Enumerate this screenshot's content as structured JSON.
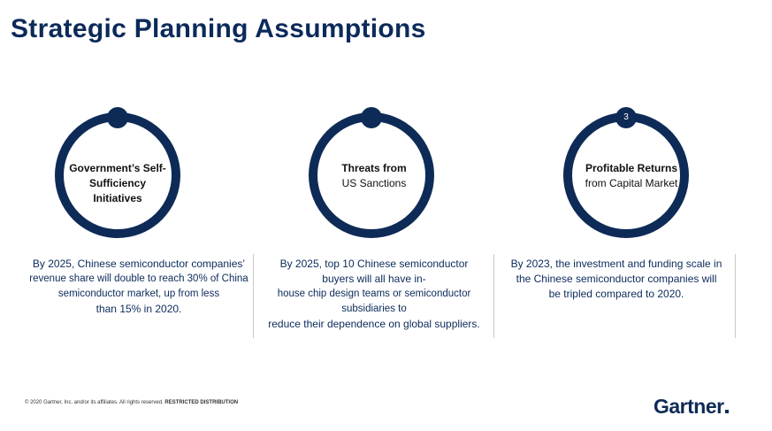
{
  "slide": {
    "title": "Strategic Planning Assumptions"
  },
  "pillars": [
    {
      "badge": "",
      "label_bold": "Government’s Self-Sufficiency Initiatives",
      "label_regular": "",
      "statement_line1": "By 2025, Chinese semiconductor companies’",
      "statement_line2": "revenue share will double to reach 30% of China semiconductor market, up from less",
      "statement_line3": "than 15% in 2020."
    },
    {
      "badge": "",
      "label_bold": "Threats from",
      "label_regular": "US Sanctions",
      "statement_line1": "By 2025, top 10 Chinese semiconductor",
      "statement_line2": "buyers will all have in-",
      "statement_line3": "house chip design teams or semiconductor subsidiaries to",
      "statement_line4": "reduce their dependence on global suppliers."
    },
    {
      "badge": "3",
      "label_bold": "Profitable Returns",
      "label_regular": "from Capital Market",
      "statement_line1": "By 2023, the investment and funding scale in",
      "statement_line2": "the Chinese semiconductor companies will",
      "statement_line3": "be tripled compared to 2020."
    }
  ],
  "footer": {
    "copyright": "© 2020 Gartner, Inc. and/or its affiliates. All rights reserved.",
    "restriction": "RESTRICTED DISTRIBUTION"
  },
  "brand": {
    "logo_text": "Gartner"
  }
}
